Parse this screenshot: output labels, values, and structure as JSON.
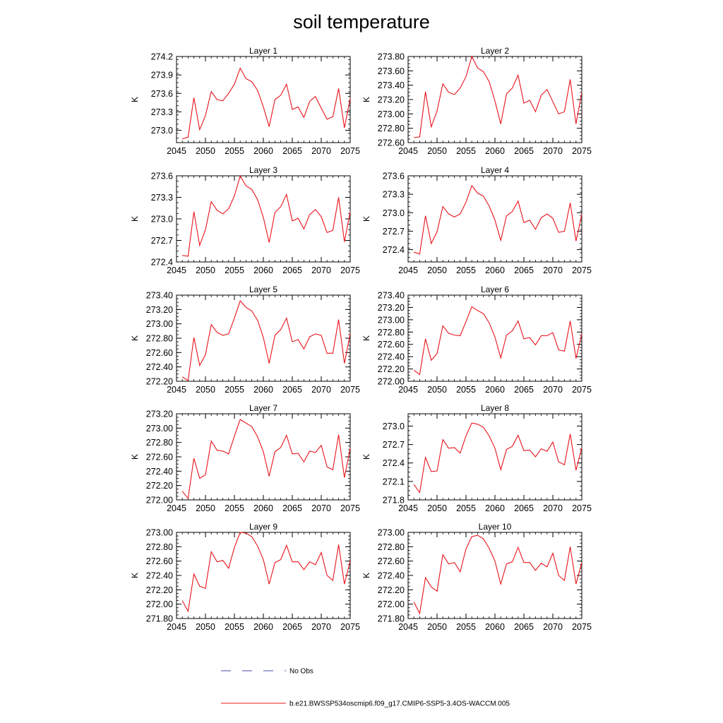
{
  "figure": {
    "title": "soil temperature",
    "colors": {
      "model": "#e8141c",
      "obs": "#4a4aa8",
      "axis": "#000000"
    }
  },
  "legend": {
    "obs_label": "No Obs",
    "model_label": "b.e21.BWSSP534oscmip6.f09_g17.CMIP6-SSP5-3.4OS-WACCM.005"
  },
  "chart_data": [
    {
      "type": "line",
      "title": "Layer 1",
      "ylabel": "K",
      "xlim": [
        2045,
        2075
      ],
      "ylim": [
        272.8,
        274.2
      ],
      "xticks": [
        2045,
        2050,
        2055,
        2060,
        2065,
        2070,
        2075
      ],
      "yticks": [
        "273.0",
        "273.3",
        "273.6",
        "273.9",
        "274.2"
      ],
      "series": [
        {
          "x": [
            2046,
            2047,
            2048,
            2049,
            2050,
            2051,
            2052,
            2053,
            2054,
            2055,
            2056,
            2057,
            2058,
            2059,
            2060,
            2061,
            2062,
            2063,
            2064,
            2065,
            2066,
            2067,
            2068,
            2069,
            2070,
            2071,
            2072,
            2073,
            2074,
            2075
          ],
          "values": [
            272.86,
            272.89,
            273.53,
            273.01,
            273.24,
            273.63,
            273.5,
            273.48,
            273.6,
            273.75,
            274.01,
            273.84,
            273.79,
            273.65,
            273.38,
            273.06,
            273.5,
            273.57,
            273.75,
            273.34,
            273.38,
            273.21,
            273.47,
            273.55,
            273.36,
            273.18,
            273.22,
            273.68,
            273.04,
            273.52
          ]
        }
      ]
    },
    {
      "type": "line",
      "title": "Layer 2",
      "ylabel": "K",
      "xlim": [
        2045,
        2075
      ],
      "ylim": [
        272.6,
        273.8
      ],
      "xticks": [
        2045,
        2050,
        2055,
        2060,
        2065,
        2070,
        2075
      ],
      "yticks": [
        "272.60",
        "272.80",
        "273.00",
        "273.20",
        "273.40",
        "273.60",
        "273.80"
      ],
      "series": [
        {
          "x": [
            2046,
            2047,
            2048,
            2049,
            2050,
            2051,
            2052,
            2053,
            2054,
            2055,
            2056,
            2057,
            2058,
            2059,
            2060,
            2061,
            2062,
            2063,
            2064,
            2065,
            2066,
            2067,
            2068,
            2069,
            2070,
            2071,
            2072,
            2073,
            2074,
            2075
          ],
          "values": [
            272.67,
            272.68,
            273.31,
            272.82,
            273.04,
            273.42,
            273.3,
            273.27,
            273.36,
            273.52,
            273.8,
            273.64,
            273.59,
            273.45,
            273.18,
            272.86,
            273.28,
            273.36,
            273.54,
            273.15,
            273.19,
            273.03,
            273.26,
            273.34,
            273.17,
            273.0,
            273.03,
            273.48,
            272.86,
            273.3
          ]
        }
      ]
    },
    {
      "type": "line",
      "title": "Layer 3",
      "ylabel": "K",
      "xlim": [
        2045,
        2075
      ],
      "ylim": [
        272.4,
        273.6
      ],
      "xticks": [
        2045,
        2050,
        2055,
        2060,
        2065,
        2070,
        2075
      ],
      "yticks": [
        "272.4",
        "272.7",
        "273.0",
        "273.3",
        "273.6"
      ],
      "series": [
        {
          "x": [
            2046,
            2047,
            2048,
            2049,
            2050,
            2051,
            2052,
            2053,
            2054,
            2055,
            2056,
            2057,
            2058,
            2059,
            2060,
            2061,
            2062,
            2063,
            2064,
            2065,
            2066,
            2067,
            2068,
            2069,
            2070,
            2071,
            2072,
            2073,
            2074,
            2075
          ],
          "values": [
            272.49,
            272.48,
            273.1,
            272.63,
            272.85,
            273.24,
            273.12,
            273.07,
            273.14,
            273.32,
            273.6,
            273.46,
            273.41,
            273.27,
            273.02,
            272.67,
            273.09,
            273.17,
            273.34,
            272.97,
            273.01,
            272.86,
            273.06,
            273.13,
            273.03,
            272.81,
            272.84,
            273.3,
            272.68,
            273.1
          ]
        }
      ]
    },
    {
      "type": "line",
      "title": "Layer 4",
      "ylabel": "K",
      "xlim": [
        2045,
        2075
      ],
      "ylim": [
        272.2,
        273.6
      ],
      "xticks": [
        2045,
        2050,
        2055,
        2060,
        2065,
        2070,
        2075
      ],
      "yticks": [
        "272.4",
        "272.7",
        "273.0",
        "273.3",
        "273.6"
      ],
      "series": [
        {
          "x": [
            2046,
            2047,
            2048,
            2049,
            2050,
            2051,
            2052,
            2053,
            2054,
            2055,
            2056,
            2057,
            2058,
            2059,
            2060,
            2061,
            2062,
            2063,
            2064,
            2065,
            2066,
            2067,
            2068,
            2069,
            2070,
            2071,
            2072,
            2073,
            2074,
            2075
          ],
          "values": [
            272.36,
            272.33,
            272.95,
            272.5,
            272.69,
            273.1,
            272.98,
            272.93,
            272.98,
            273.17,
            273.44,
            273.32,
            273.27,
            273.11,
            272.88,
            272.55,
            272.95,
            273.02,
            273.19,
            272.84,
            272.88,
            272.73,
            272.92,
            272.98,
            272.91,
            272.68,
            272.7,
            273.16,
            272.54,
            272.97
          ]
        }
      ]
    },
    {
      "type": "line",
      "title": "Layer 5",
      "ylabel": "K",
      "xlim": [
        2045,
        2075
      ],
      "ylim": [
        272.2,
        273.4
      ],
      "xticks": [
        2045,
        2050,
        2055,
        2060,
        2065,
        2070,
        2075
      ],
      "yticks": [
        "272.20",
        "272.40",
        "272.60",
        "272.80",
        "273.00",
        "273.20",
        "273.40"
      ],
      "series": [
        {
          "x": [
            2046,
            2047,
            2048,
            2049,
            2050,
            2051,
            2052,
            2053,
            2054,
            2055,
            2056,
            2057,
            2058,
            2059,
            2060,
            2061,
            2062,
            2063,
            2064,
            2065,
            2066,
            2067,
            2068,
            2069,
            2070,
            2071,
            2072,
            2073,
            2074,
            2075
          ],
          "values": [
            272.26,
            272.21,
            272.81,
            272.42,
            272.57,
            272.99,
            272.88,
            272.84,
            272.86,
            273.08,
            273.32,
            273.23,
            273.18,
            273.05,
            272.81,
            272.45,
            272.84,
            272.92,
            273.08,
            272.75,
            272.78,
            272.65,
            272.82,
            272.86,
            272.84,
            272.59,
            272.59,
            273.06,
            272.45,
            272.86
          ]
        }
      ]
    },
    {
      "type": "line",
      "title": "Layer 6",
      "ylabel": "K",
      "xlim": [
        2045,
        2075
      ],
      "ylim": [
        272.0,
        273.4
      ],
      "xticks": [
        2045,
        2050,
        2055,
        2060,
        2065,
        2070,
        2075
      ],
      "yticks": [
        "272.00",
        "272.20",
        "272.40",
        "272.60",
        "272.80",
        "273.00",
        "273.20",
        "273.40"
      ],
      "series": [
        {
          "x": [
            2046,
            2047,
            2048,
            2049,
            2050,
            2051,
            2052,
            2053,
            2054,
            2055,
            2056,
            2057,
            2058,
            2059,
            2060,
            2061,
            2062,
            2063,
            2064,
            2065,
            2066,
            2067,
            2068,
            2069,
            2070,
            2071,
            2072,
            2073,
            2074,
            2075
          ],
          "values": [
            272.18,
            272.11,
            272.69,
            272.34,
            272.45,
            272.9,
            272.78,
            272.75,
            272.74,
            272.97,
            273.21,
            273.15,
            273.1,
            272.95,
            272.72,
            272.38,
            272.75,
            272.82,
            272.98,
            272.69,
            272.71,
            272.59,
            272.74,
            272.74,
            272.79,
            272.51,
            272.49,
            272.98,
            272.37,
            272.77
          ]
        }
      ]
    },
    {
      "type": "line",
      "title": "Layer 7",
      "ylabel": "K",
      "xlim": [
        2045,
        2075
      ],
      "ylim": [
        272.0,
        273.2
      ],
      "xticks": [
        2045,
        2050,
        2055,
        2060,
        2065,
        2070,
        2075
      ],
      "yticks": [
        "272.00",
        "272.20",
        "272.40",
        "272.60",
        "272.80",
        "273.00",
        "273.20"
      ],
      "series": [
        {
          "x": [
            2046,
            2047,
            2048,
            2049,
            2050,
            2051,
            2052,
            2053,
            2054,
            2055,
            2056,
            2057,
            2058,
            2059,
            2060,
            2061,
            2062,
            2063,
            2064,
            2065,
            2066,
            2067,
            2068,
            2069,
            2070,
            2071,
            2072,
            2073,
            2074,
            2075
          ],
          "values": [
            272.12,
            272.02,
            272.58,
            272.3,
            272.35,
            272.82,
            272.69,
            272.68,
            272.64,
            272.89,
            273.12,
            273.07,
            273.02,
            272.88,
            272.67,
            272.33,
            272.67,
            272.73,
            272.9,
            272.64,
            272.65,
            272.53,
            272.68,
            272.66,
            272.76,
            272.46,
            272.42,
            272.91,
            272.31,
            272.72
          ]
        }
      ]
    },
    {
      "type": "line",
      "title": "Layer 8",
      "ylabel": "K",
      "xlim": [
        2045,
        2075
      ],
      "ylim": [
        271.8,
        273.2
      ],
      "xticks": [
        2045,
        2050,
        2055,
        2060,
        2065,
        2070,
        2075
      ],
      "yticks": [
        "271.8",
        "272.1",
        "272.4",
        "272.7",
        "273.0"
      ],
      "series": [
        {
          "x": [
            2046,
            2047,
            2048,
            2049,
            2050,
            2051,
            2052,
            2053,
            2054,
            2055,
            2056,
            2057,
            2058,
            2059,
            2060,
            2061,
            2062,
            2063,
            2064,
            2065,
            2066,
            2067,
            2068,
            2069,
            2070,
            2071,
            2072,
            2073,
            2074,
            2075
          ],
          "values": [
            272.05,
            271.92,
            272.49,
            272.26,
            272.27,
            272.78,
            272.64,
            272.65,
            272.56,
            272.84,
            273.05,
            273.03,
            272.98,
            272.84,
            272.64,
            272.29,
            272.62,
            272.67,
            272.85,
            272.6,
            272.61,
            272.5,
            272.63,
            272.59,
            272.74,
            272.42,
            272.37,
            272.87,
            272.28,
            272.65
          ]
        }
      ]
    },
    {
      "type": "line",
      "title": "Layer 9",
      "ylabel": "K",
      "xlim": [
        2045,
        2075
      ],
      "ylim": [
        271.8,
        273.0
      ],
      "xticks": [
        2045,
        2050,
        2055,
        2060,
        2065,
        2070,
        2075
      ],
      "yticks": [
        "271.80",
        "272.00",
        "272.20",
        "272.40",
        "272.60",
        "272.80",
        "273.00"
      ],
      "series": [
        {
          "x": [
            2046,
            2047,
            2048,
            2049,
            2050,
            2051,
            2052,
            2053,
            2054,
            2055,
            2056,
            2057,
            2058,
            2059,
            2060,
            2061,
            2062,
            2063,
            2064,
            2065,
            2066,
            2067,
            2068,
            2069,
            2070,
            2071,
            2072,
            2073,
            2074,
            2075
          ],
          "values": [
            272.05,
            271.9,
            272.42,
            272.25,
            272.22,
            272.73,
            272.59,
            272.61,
            272.5,
            272.79,
            273.0,
            272.99,
            272.94,
            272.81,
            272.62,
            272.28,
            272.58,
            272.62,
            272.82,
            272.59,
            272.59,
            272.48,
            272.59,
            272.55,
            272.72,
            272.4,
            272.33,
            272.83,
            272.28,
            272.6
          ]
        }
      ]
    },
    {
      "type": "line",
      "title": "Layer 10",
      "ylabel": "K",
      "xlim": [
        2045,
        2075
      ],
      "ylim": [
        271.8,
        273.0
      ],
      "xticks": [
        2045,
        2050,
        2055,
        2060,
        2065,
        2070,
        2075
      ],
      "yticks": [
        "271.80",
        "272.00",
        "272.20",
        "272.40",
        "272.60",
        "272.80",
        "273.00"
      ],
      "series": [
        {
          "x": [
            2046,
            2047,
            2048,
            2049,
            2050,
            2051,
            2052,
            2053,
            2054,
            2055,
            2056,
            2057,
            2058,
            2059,
            2060,
            2061,
            2062,
            2063,
            2064,
            2065,
            2066,
            2067,
            2068,
            2069,
            2070,
            2071,
            2072,
            2073,
            2074,
            2075
          ],
          "values": [
            272.03,
            271.87,
            272.37,
            272.24,
            272.18,
            272.69,
            272.56,
            272.58,
            272.45,
            272.77,
            272.94,
            272.96,
            272.91,
            272.78,
            272.6,
            272.28,
            272.56,
            272.59,
            272.79,
            272.58,
            272.58,
            272.47,
            272.57,
            272.52,
            272.71,
            272.4,
            272.33,
            272.8,
            272.28,
            272.58
          ]
        }
      ]
    }
  ]
}
